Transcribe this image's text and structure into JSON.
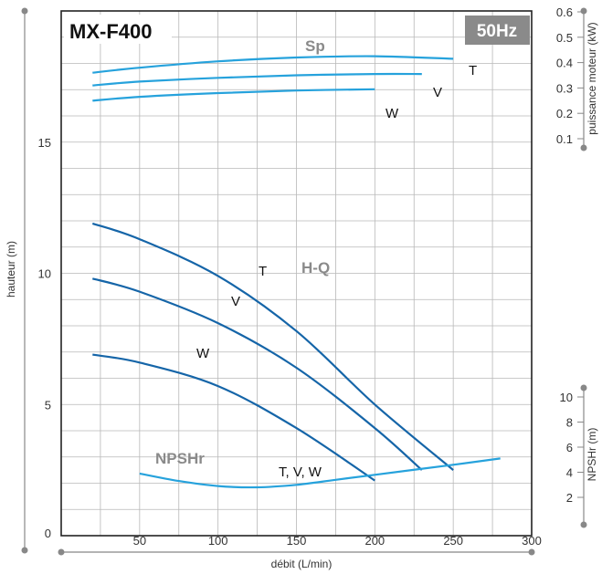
{
  "chart_data": {
    "type": "line",
    "model": "MX-F400",
    "frequency": "50Hz",
    "xlabel": "débit  (L/min)",
    "xlim": [
      0,
      300
    ],
    "x_ticks": [
      "50",
      "100",
      "150",
      "200",
      "250",
      "300"
    ],
    "ylabel_left": "hauteur (m)",
    "ylim_left": [
      0,
      20
    ],
    "y_ticks_left": [
      "0",
      "5",
      "10",
      "15"
    ],
    "ylabel_right_top": "puissance moteur (kW)",
    "y_ticks_right_top": [
      "0.1",
      "0.2",
      "0.3",
      "0.4",
      "0.5",
      "0.6"
    ],
    "ylabel_right_bottom": "NPSHr (m)",
    "y_ticks_right_bottom": [
      "2",
      "4",
      "6",
      "8",
      "10"
    ],
    "grid": true,
    "groups": [
      {
        "label": "Sp",
        "series": [
          {
            "name": "T",
            "x": [
              20,
              50,
              100,
              150,
              200,
              250
            ],
            "y": [
              0.36,
              0.38,
              0.405,
              0.42,
              0.425,
              0.415
            ]
          },
          {
            "name": "V",
            "x": [
              20,
              50,
              100,
              150,
              200,
              230
            ],
            "y": [
              0.31,
              0.325,
              0.34,
              0.35,
              0.355,
              0.355
            ]
          },
          {
            "name": "W",
            "x": [
              20,
              50,
              100,
              150,
              200
            ],
            "y": [
              0.25,
              0.265,
              0.28,
              0.29,
              0.295
            ]
          }
        ]
      },
      {
        "label": "H-Q",
        "series": [
          {
            "name": "T",
            "x": [
              20,
              50,
              100,
              150,
              200,
              250
            ],
            "y": [
              11.9,
              11.3,
              9.9,
              7.8,
              5.0,
              2.5
            ]
          },
          {
            "name": "V",
            "x": [
              20,
              50,
              100,
              150,
              200,
              230
            ],
            "y": [
              9.8,
              9.3,
              8.1,
              6.4,
              4.1,
              2.5
            ]
          },
          {
            "name": "W",
            "x": [
              20,
              50,
              100,
              150,
              200
            ],
            "y": [
              6.9,
              6.6,
              5.7,
              4.1,
              2.1
            ]
          }
        ]
      },
      {
        "label": "NPSHr",
        "curve_label": "T, V, W",
        "series": [
          {
            "name": "",
            "x": [
              50,
              75,
              100,
              125,
              150,
              175,
              200,
              250,
              280
            ],
            "y": [
              3.9,
              3.3,
              2.9,
              2.8,
              3.0,
              3.4,
              3.8,
              4.6,
              5.1
            ]
          }
        ]
      }
    ],
    "colors": {
      "hq": "#1565a8",
      "sp": "#26a2dc",
      "npsh": "#26a2dc",
      "grid": "#b8b8b8",
      "badge": "#8a8a8a",
      "axis": "#777777"
    }
  }
}
